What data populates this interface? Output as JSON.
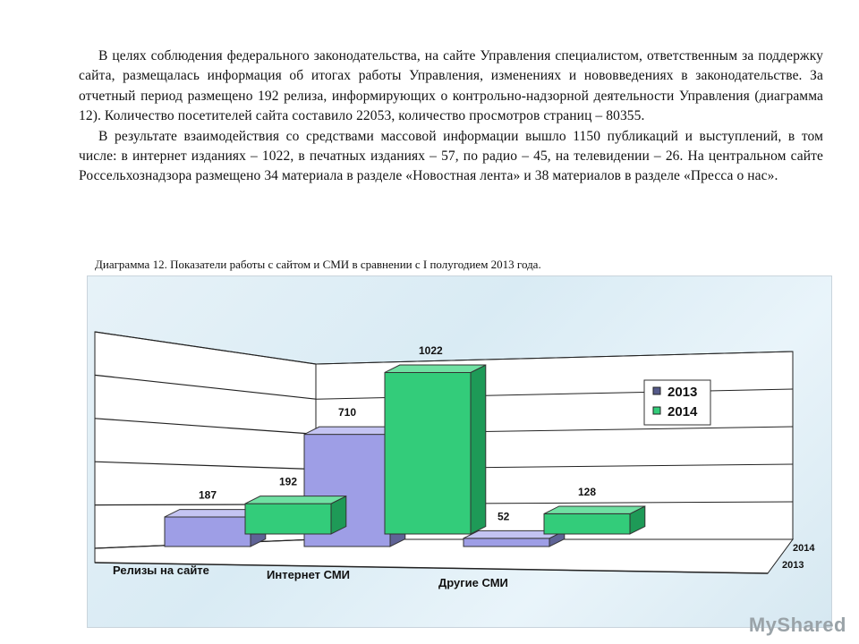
{
  "document": {
    "paragraphs": [
      "В целях соблюдения федерального законодательства, на сайте Управления специалистом, ответственным за поддержку сайта, размещалась информация об итогах работы Управления, изменениях и нововведениях в законодательстве. За отчетный период размещено 192 релиза, информирующих о контрольно-надзорной деятельности Управления (диаграмма 12). Количество посетителей сайта составило 22053, количество просмотров страниц – 80355.",
      "В результате взаимодействия со средствами массовой информации вышло 1150 публикаций и выступлений, в том числе: в интернет изданиях – 1022, в печатных изданиях – 57, по радио – 45, на телевидении – 26. На центральном сайте Россельхознадзора размещено 34 материала в разделе «Новостная лента» и 38 материалов в разделе «Пресса о нас»."
    ],
    "caption": "Диаграмма 12. Показатели работы с сайтом и СМИ в сравнении с I полугодием 2013 года."
  },
  "chart_data": {
    "type": "bar",
    "categories": [
      "Релизы на сайте",
      "Интернет СМИ",
      "Другие СМИ"
    ],
    "series": [
      {
        "name": "2013",
        "values": [
          187,
          710,
          52
        ],
        "labels": [
          "187",
          "710",
          "52"
        ]
      },
      {
        "name": "2014",
        "values": [
          192,
          1022,
          128
        ],
        "labels": [
          "192",
          "1022",
          "128"
        ]
      }
    ],
    "depth_labels": [
      "2014",
      "2013"
    ],
    "legend_position": "right",
    "grid": true,
    "colors": {
      "2013": "#9e9ee6",
      "2014": "#33cc7a"
    }
  },
  "watermark": "MyShared"
}
